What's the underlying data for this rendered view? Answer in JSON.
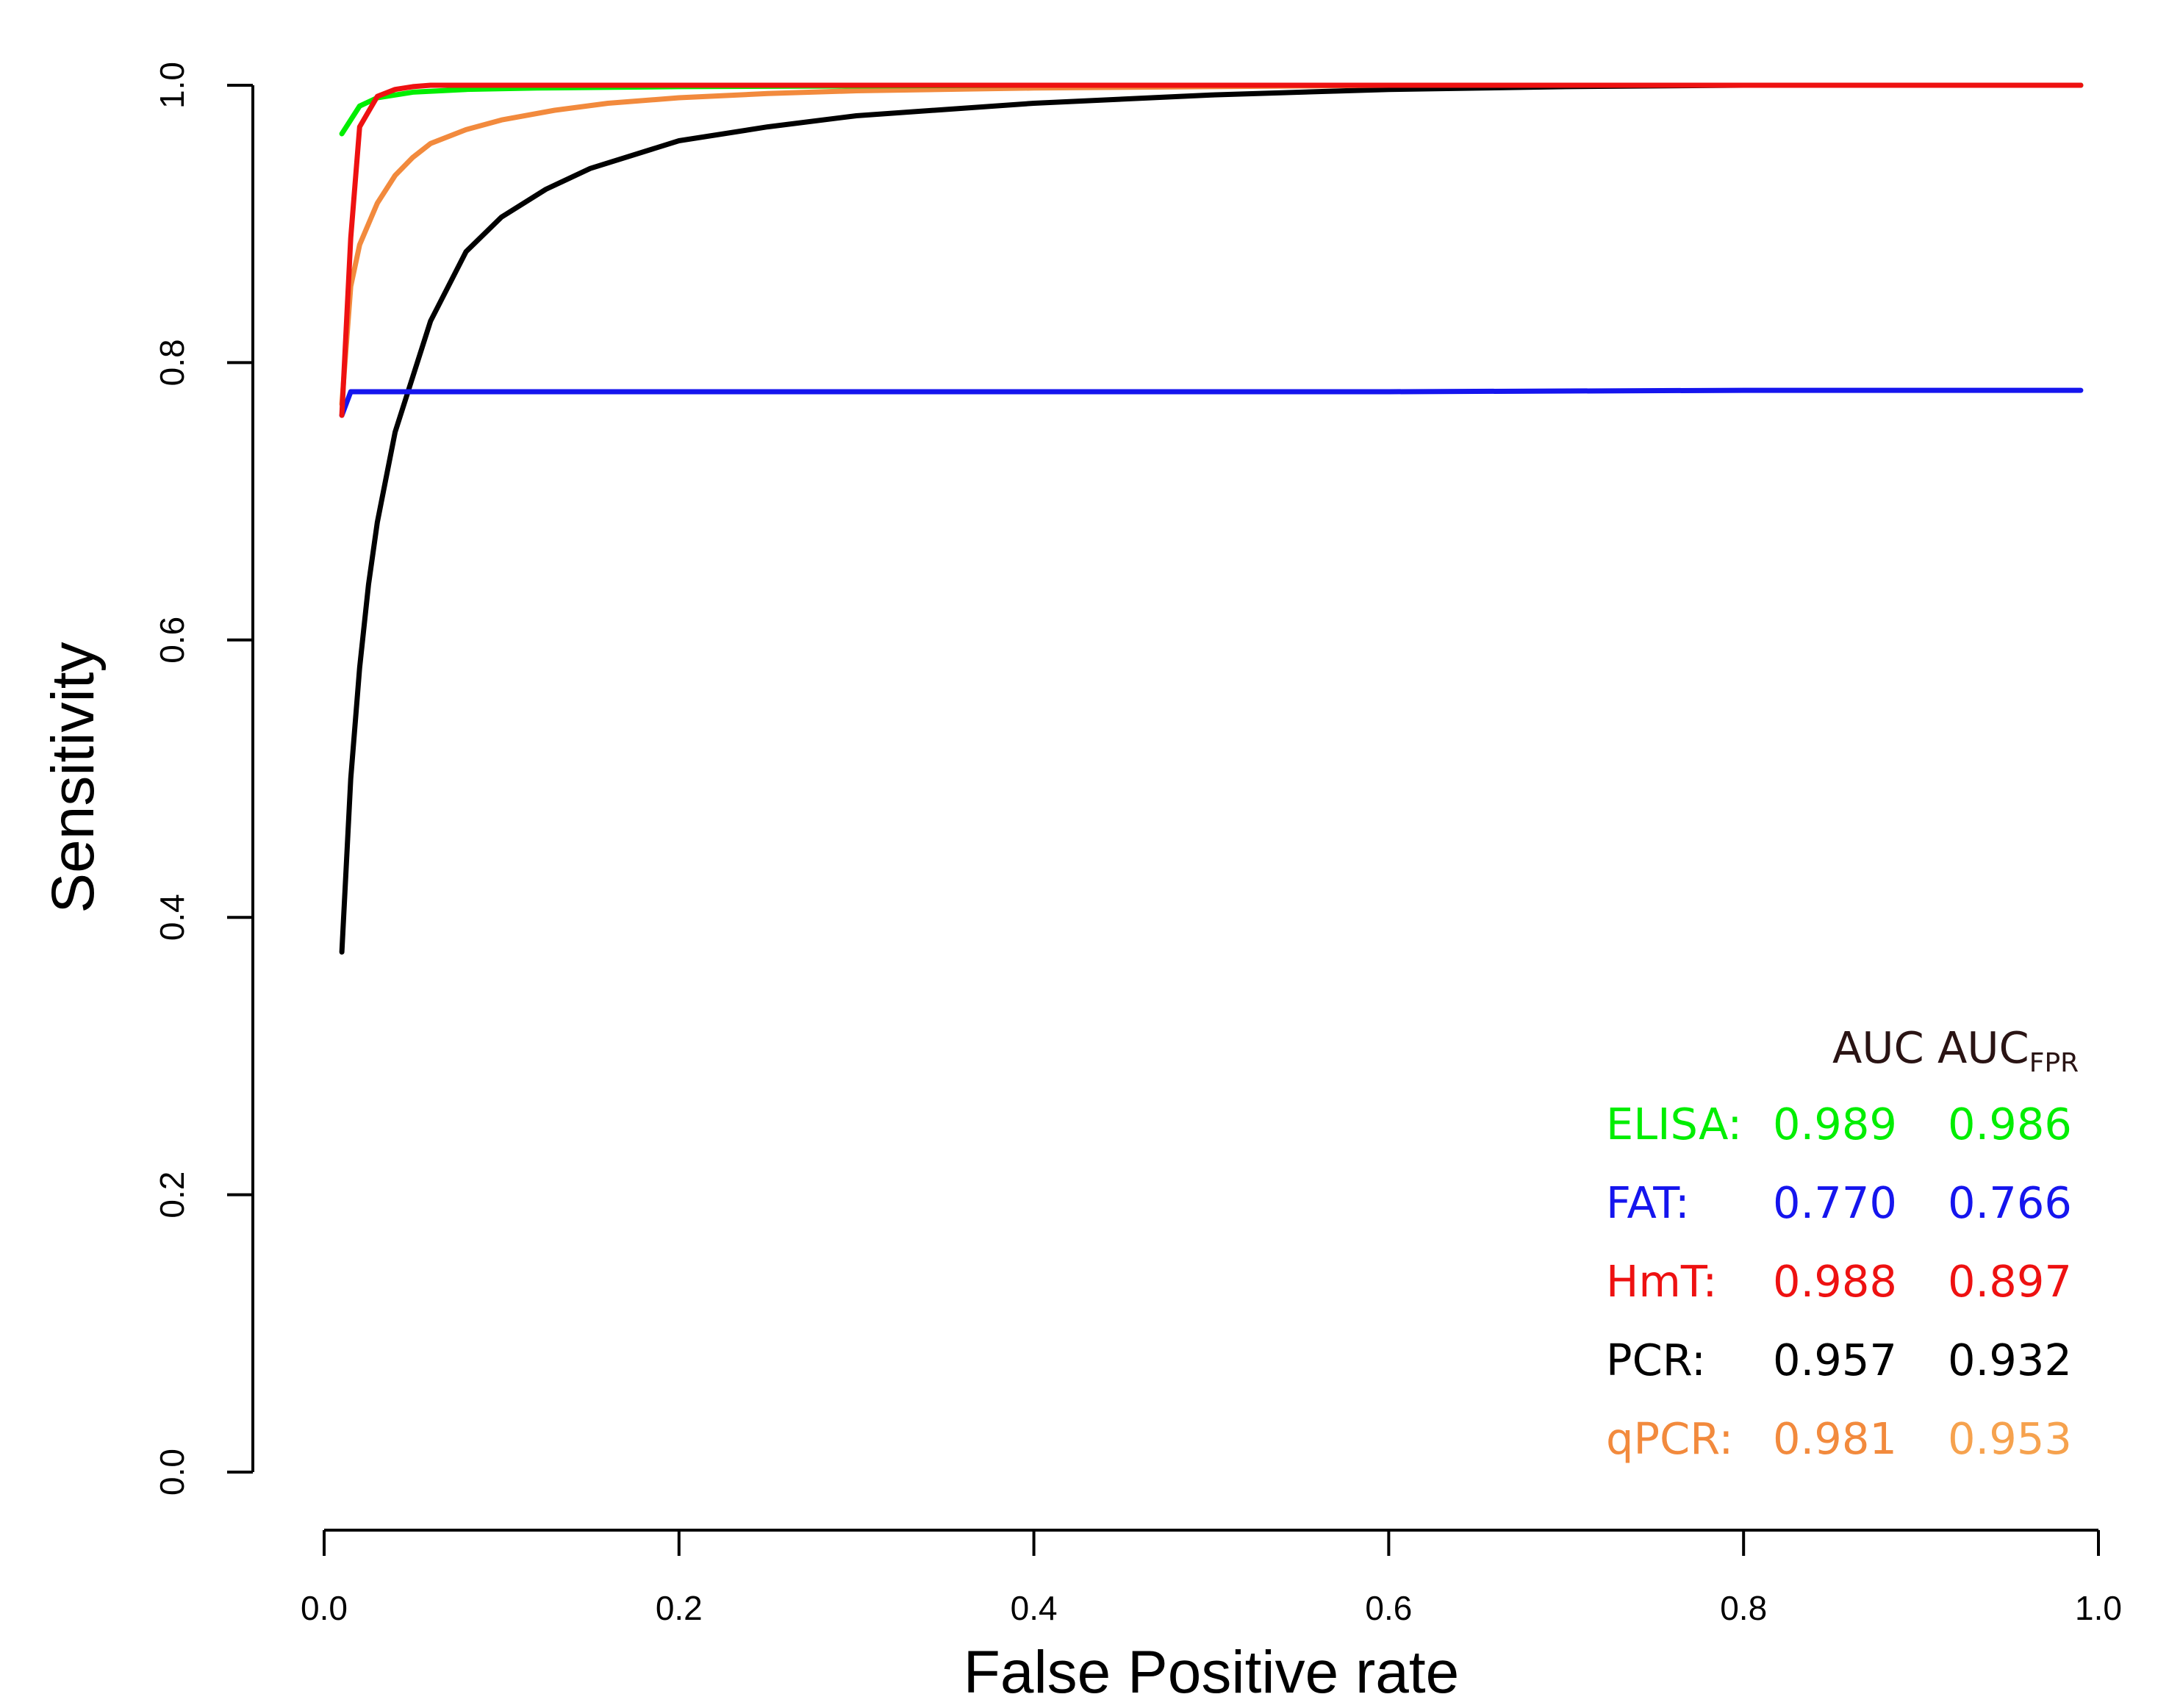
{
  "chart_data": {
    "type": "line",
    "title": "",
    "xlabel": "False Positive rate",
    "ylabel": "Sensitivity",
    "xlim": [
      0,
      1
    ],
    "ylim": [
      0,
      1
    ],
    "xticks": [
      0.0,
      0.2,
      0.4,
      0.6,
      0.8,
      1.0
    ],
    "yticks": [
      0.0,
      0.2,
      0.4,
      0.6,
      0.8,
      1.0
    ],
    "xtick_labels": [
      "0.0",
      "0.2",
      "0.4",
      "0.6",
      "0.8",
      "1.0"
    ],
    "ytick_labels": [
      "0.0",
      "0.2",
      "0.4",
      "0.6",
      "0.8",
      "1.0"
    ],
    "grid": false,
    "series": [
      {
        "name": "ELISA",
        "color": "#00ee00",
        "x": [
          0.01,
          0.02,
          0.03,
          0.05,
          0.08,
          0.12,
          0.2,
          0.4,
          0.6,
          0.8,
          0.99
        ],
        "y": [
          0.965,
          0.985,
          0.991,
          0.995,
          0.997,
          0.998,
          0.999,
          1.0,
          1.0,
          1.0,
          1.0
        ]
      },
      {
        "name": "FAT",
        "color": "#1515ee",
        "x": [
          0.01,
          0.015,
          0.2,
          0.4,
          0.6,
          0.8,
          0.99
        ],
        "y": [
          0.762,
          0.779,
          0.779,
          0.779,
          0.779,
          0.78,
          0.78
        ]
      },
      {
        "name": "HmT",
        "color": "#ee1111",
        "x": [
          0.01,
          0.015,
          0.02,
          0.03,
          0.04,
          0.05,
          0.06,
          0.1,
          0.2,
          0.4,
          0.6,
          0.8,
          0.99
        ],
        "y": [
          0.762,
          0.89,
          0.97,
          0.992,
          0.997,
          0.999,
          1.0,
          1.0,
          1.0,
          1.0,
          1.0,
          1.0,
          1.0
        ]
      },
      {
        "name": "PCR",
        "color": "#000000",
        "x": [
          0.01,
          0.015,
          0.02,
          0.025,
          0.03,
          0.04,
          0.05,
          0.06,
          0.08,
          0.1,
          0.125,
          0.15,
          0.2,
          0.25,
          0.3,
          0.4,
          0.5,
          0.6,
          0.7,
          0.8,
          0.9,
          0.99
        ],
        "y": [
          0.375,
          0.5,
          0.58,
          0.64,
          0.685,
          0.75,
          0.79,
          0.83,
          0.88,
          0.905,
          0.925,
          0.94,
          0.96,
          0.97,
          0.978,
          0.987,
          0.993,
          0.997,
          0.999,
          1.0,
          1.0,
          1.0
        ]
      },
      {
        "name": "qPCR",
        "color": "#f28a3d",
        "x": [
          0.01,
          0.015,
          0.02,
          0.03,
          0.04,
          0.05,
          0.06,
          0.08,
          0.1,
          0.13,
          0.16,
          0.2,
          0.25,
          0.3,
          0.4,
          0.5,
          0.6,
          0.7,
          0.8,
          0.9,
          0.99
        ],
        "y": [
          0.77,
          0.855,
          0.885,
          0.915,
          0.935,
          0.948,
          0.958,
          0.968,
          0.975,
          0.982,
          0.987,
          0.991,
          0.994,
          0.996,
          0.998,
          0.999,
          1.0,
          1.0,
          1.0,
          1.0,
          1.0
        ]
      }
    ],
    "legend": {
      "placement": "bottom-right",
      "header_auc": "AUC",
      "header_auc_fpr_main": "AUC",
      "header_auc_fpr_sub": "FPR",
      "header_color": "#2a1414",
      "rows": [
        {
          "label": "ELISA:",
          "auc": "0.989",
          "auc_fpr": "0.986",
          "color": "#00ee00",
          "color_fpr": "#00ee00"
        },
        {
          "label": "FAT:",
          "auc": "0.770",
          "auc_fpr": "0.766",
          "color": "#1515ee",
          "color_fpr": "#1515ee"
        },
        {
          "label": "HmT:",
          "auc": "0.988",
          "auc_fpr": "0.897",
          "color": "#ee1111",
          "color_fpr": "#ee1111"
        },
        {
          "label": "PCR:",
          "auc": "0.957",
          "auc_fpr": "0.932",
          "color": "#000000",
          "color_fpr": "#000000"
        },
        {
          "label": "qPCR:",
          "auc": "0.981",
          "auc_fpr": "0.953",
          "color": "#f28a3d",
          "color_fpr": "#f6a24e"
        }
      ]
    }
  }
}
